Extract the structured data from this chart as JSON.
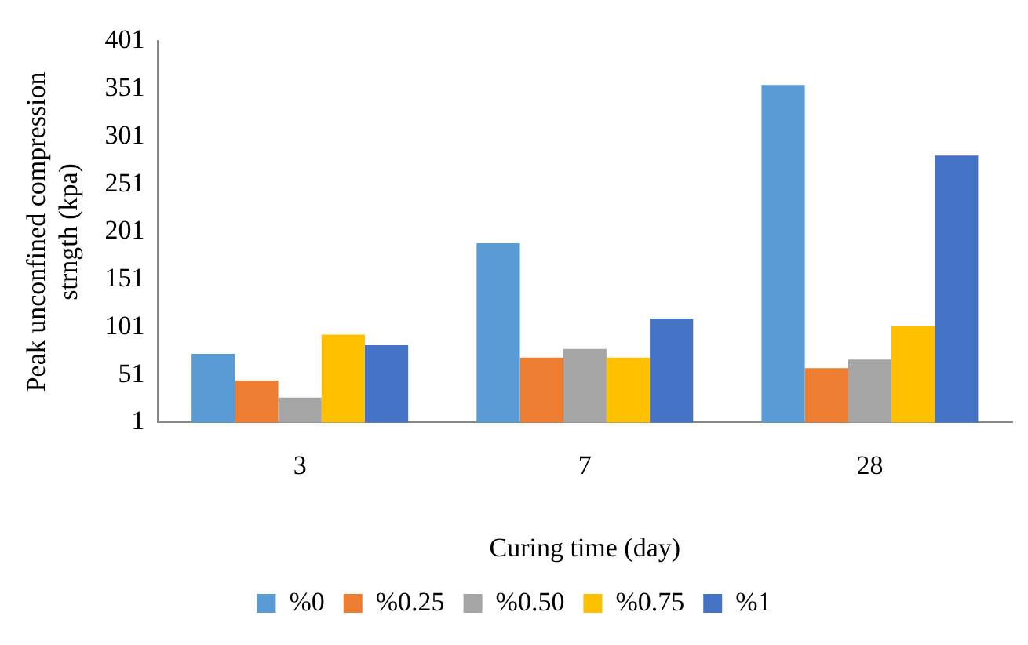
{
  "chart_data": {
    "type": "bar",
    "xlabel": "Curing time (day)",
    "ylabel": "Peak unconfined compression strngth (kpa)",
    "categories": [
      "3",
      "7",
      "28"
    ],
    "series": [
      {
        "name": "%0",
        "color": "#5b9bd5",
        "values": [
          73,
          189,
          355
        ]
      },
      {
        "name": "%0.25",
        "color": "#ed7d31",
        "values": [
          45,
          69,
          58
        ]
      },
      {
        "name": "%0.50",
        "color": "#a5a5a5",
        "values": [
          27,
          78,
          67
        ]
      },
      {
        "name": "%0.75",
        "color": "#ffc000",
        "values": [
          93,
          69,
          102
        ]
      },
      {
        "name": "%1",
        "color": "#4472c4",
        "values": [
          82,
          110,
          281
        ]
      }
    ],
    "ylim": [
      1,
      401
    ],
    "yticks": [
      1,
      51,
      101,
      151,
      201,
      251,
      301,
      351,
      401
    ],
    "grid": false,
    "legend": "bottom"
  }
}
